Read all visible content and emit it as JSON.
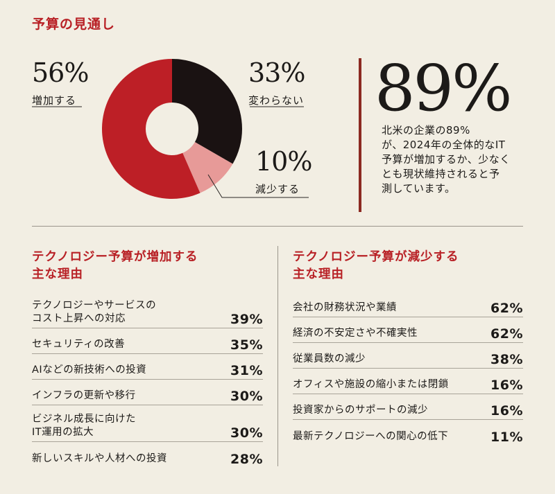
{
  "chart_data": [
    {
      "type": "pie",
      "title": "予算の見通し",
      "slices": [
        {
          "label": "変わらない",
          "value": 33,
          "display": "33%",
          "color": "#1a1212"
        },
        {
          "label": "減少する",
          "value": 10,
          "display": "10%",
          "color": "#e79a98"
        },
        {
          "label": "増加する",
          "value": 56,
          "display": "56%",
          "color": "#bd1f26"
        }
      ],
      "donut": true
    },
    {
      "type": "table",
      "title": "テクノロジー予算が増加する\n主な理由",
      "rows": [
        {
          "label": "テクノロジーやサービスの\nコスト上昇への対応",
          "value": "39%"
        },
        {
          "label": "セキュリティの改善",
          "value": "35%"
        },
        {
          "label": "AIなどの新技術への投資",
          "value": "31%"
        },
        {
          "label": "インフラの更新や移行",
          "value": "30%"
        },
        {
          "label": "ビジネル成長に向けた\nIT運用の拡大",
          "value": "30%"
        },
        {
          "label": "新しいスキルや人材への投資",
          "value": "28%"
        }
      ]
    },
    {
      "type": "table",
      "title": "テクノロジー予算が減少する\n主な理由",
      "rows": [
        {
          "label": "会社の財務状況や業績",
          "value": "62%"
        },
        {
          "label": "経済の不安定さや不確実性",
          "value": "62%"
        },
        {
          "label": "従業員数の減少",
          "value": "38%"
        },
        {
          "label": "オフィスや施設の縮小または閉鎖",
          "value": "16%"
        },
        {
          "label": "投資家からのサポートの減少",
          "value": "16%"
        },
        {
          "label": "最新テクノロジーへの関心の低下",
          "value": "11%"
        }
      ]
    }
  ],
  "highlight": {
    "value": "89%",
    "text": "北米の企業の89%\nが、2024年の全体的なIT\n予算が増加するか、少なく\nとも現状維持されると予\n測しています。"
  }
}
